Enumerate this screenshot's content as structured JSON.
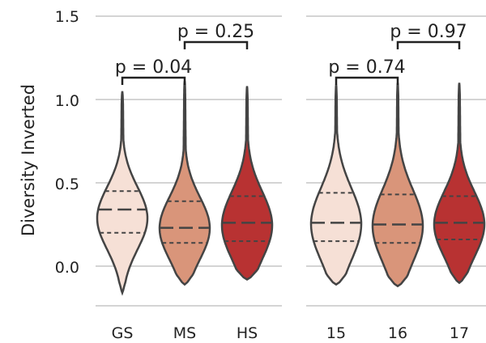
{
  "chart_data": {
    "type": "violin",
    "ylabel": "Diversity Inverted",
    "ylim": [
      -0.2,
      1.55
    ],
    "yticks": [
      "0.0",
      "0.5",
      "1.0",
      "1.5"
    ],
    "grid": true,
    "panels": [
      {
        "categories": [
          "GS",
          "MS",
          "HS"
        ],
        "colors": [
          "#f6e0d6",
          "#d9957a",
          "#b83232"
        ],
        "stats": [
          {
            "min": -0.16,
            "max": 1.05,
            "q1": 0.2,
            "median": 0.34,
            "q3": 0.45
          },
          {
            "min": -0.11,
            "max": 1.11,
            "q1": 0.14,
            "median": 0.23,
            "q3": 0.39
          },
          {
            "min": -0.08,
            "max": 1.08,
            "q1": 0.15,
            "median": 0.26,
            "q3": 0.42
          }
        ],
        "comparisons": [
          {
            "pair": [
              "GS",
              "MS"
            ],
            "label": "p = 0.04"
          },
          {
            "pair": [
              "MS",
              "HS"
            ],
            "label": "p = 0.25"
          }
        ]
      },
      {
        "categories": [
          "15",
          "16",
          "17"
        ],
        "colors": [
          "#f6e0d6",
          "#d9957a",
          "#b83232"
        ],
        "stats": [
          {
            "min": -0.11,
            "max": 1.09,
            "q1": 0.15,
            "median": 0.26,
            "q3": 0.44
          },
          {
            "min": -0.12,
            "max": 1.1,
            "q1": 0.14,
            "median": 0.25,
            "q3": 0.43
          },
          {
            "min": -0.1,
            "max": 1.1,
            "q1": 0.16,
            "median": 0.26,
            "q3": 0.42
          }
        ],
        "comparisons": [
          {
            "pair": [
              "15",
              "16"
            ],
            "label": "p = 0.74"
          },
          {
            "pair": [
              "16",
              "17"
            ],
            "label": "p = 0.97"
          }
        ]
      }
    ]
  }
}
